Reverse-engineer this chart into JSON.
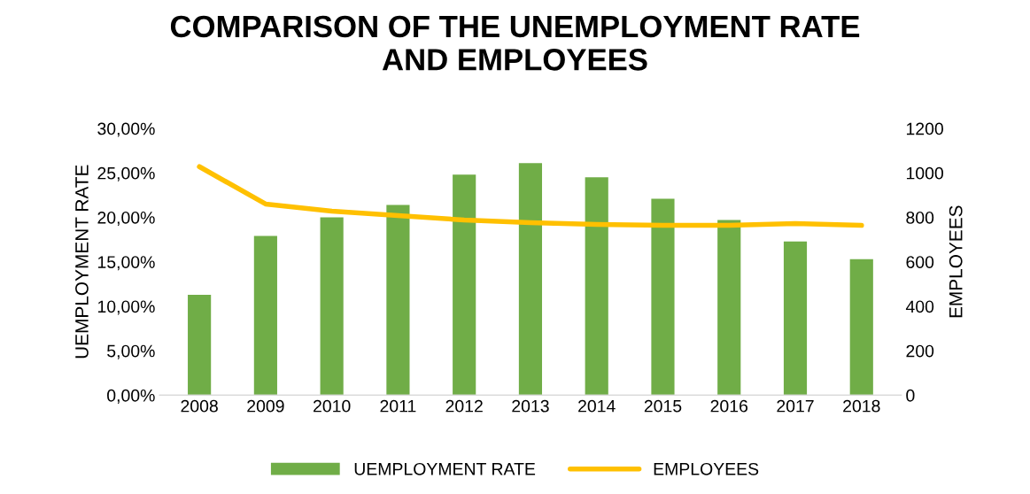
{
  "chart_data": {
    "type": "bar",
    "title": "COMPARISON OF THE UNEMPLOYMENT RATE\nAND EMPLOYEES",
    "categories": [
      "2008",
      "2009",
      "2010",
      "2011",
      "2012",
      "2013",
      "2014",
      "2015",
      "2016",
      "2017",
      "2018"
    ],
    "series": [
      {
        "name": "UEMPLOYMENT RATE",
        "color": "#70ad47",
        "values": [
          11.3,
          17.9,
          20.0,
          21.4,
          24.8,
          26.1,
          24.5,
          22.1,
          19.7,
          17.3,
          15.3
        ]
      },
      {
        "name": "EMPLOYEES",
        "type": "line",
        "axis": "y2",
        "color": "#ffc000",
        "values": [
          1028,
          860,
          828,
          808,
          788,
          776,
          768,
          764,
          764,
          772,
          764
        ]
      }
    ],
    "ylabel": "UEMPLOYMENT RATE",
    "y2label": "EMPLOYEES",
    "ylim": [
      0,
      30
    ],
    "yticks": [
      {
        "value": 0,
        "label": "0,00%"
      },
      {
        "value": 5,
        "label": "5,00%"
      },
      {
        "value": 10,
        "label": "10,00%"
      },
      {
        "value": 15,
        "label": "15,00%"
      },
      {
        "value": 20,
        "label": "20,00%"
      },
      {
        "value": 25,
        "label": "25,00%"
      },
      {
        "value": 30,
        "label": "30,00%"
      }
    ],
    "y2lim": [
      0,
      1200
    ],
    "y2ticks": [
      0,
      200,
      400,
      600,
      800,
      1000,
      1200
    ],
    "legend": "bottom",
    "marker": "none",
    "line_style": "solid"
  }
}
